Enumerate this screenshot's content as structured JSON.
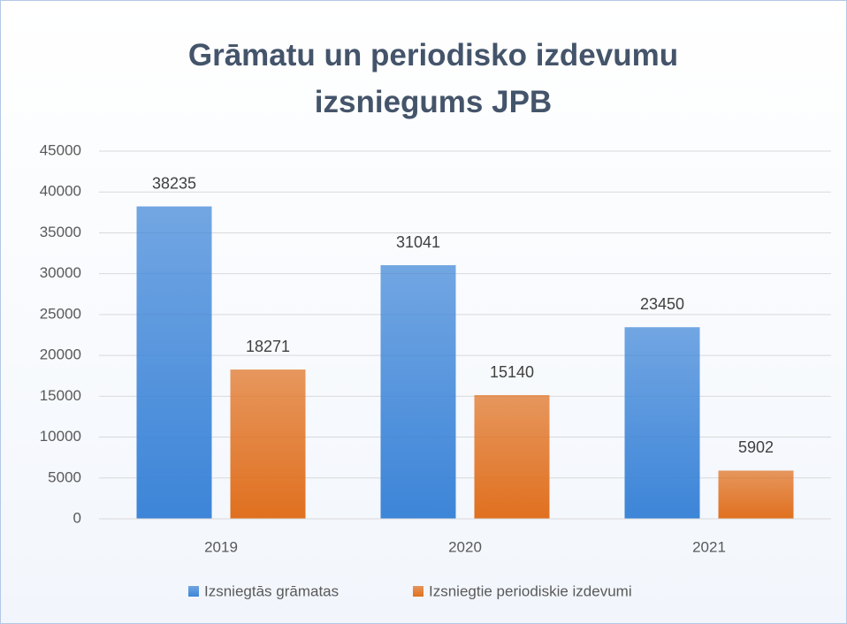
{
  "chart_data": {
    "type": "bar",
    "title": "Grāmatu un periodisko izdevumu izsniegums JPB",
    "categories": [
      "2019",
      "2020",
      "2021"
    ],
    "series": [
      {
        "name": "Izsniegtās grāmatas",
        "color": "#3d85d8",
        "values": [
          38235,
          31041,
          23450
        ]
      },
      {
        "name": "Izsniegtie periodiskie izdevumi",
        "color": "#e0701f",
        "values": [
          18271,
          15140,
          5902
        ]
      }
    ],
    "ylim": [
      0,
      45000
    ],
    "yticks": [
      0,
      5000,
      10000,
      15000,
      20000,
      25000,
      30000,
      35000,
      40000,
      45000
    ],
    "grid": true,
    "legend": "bottom"
  }
}
